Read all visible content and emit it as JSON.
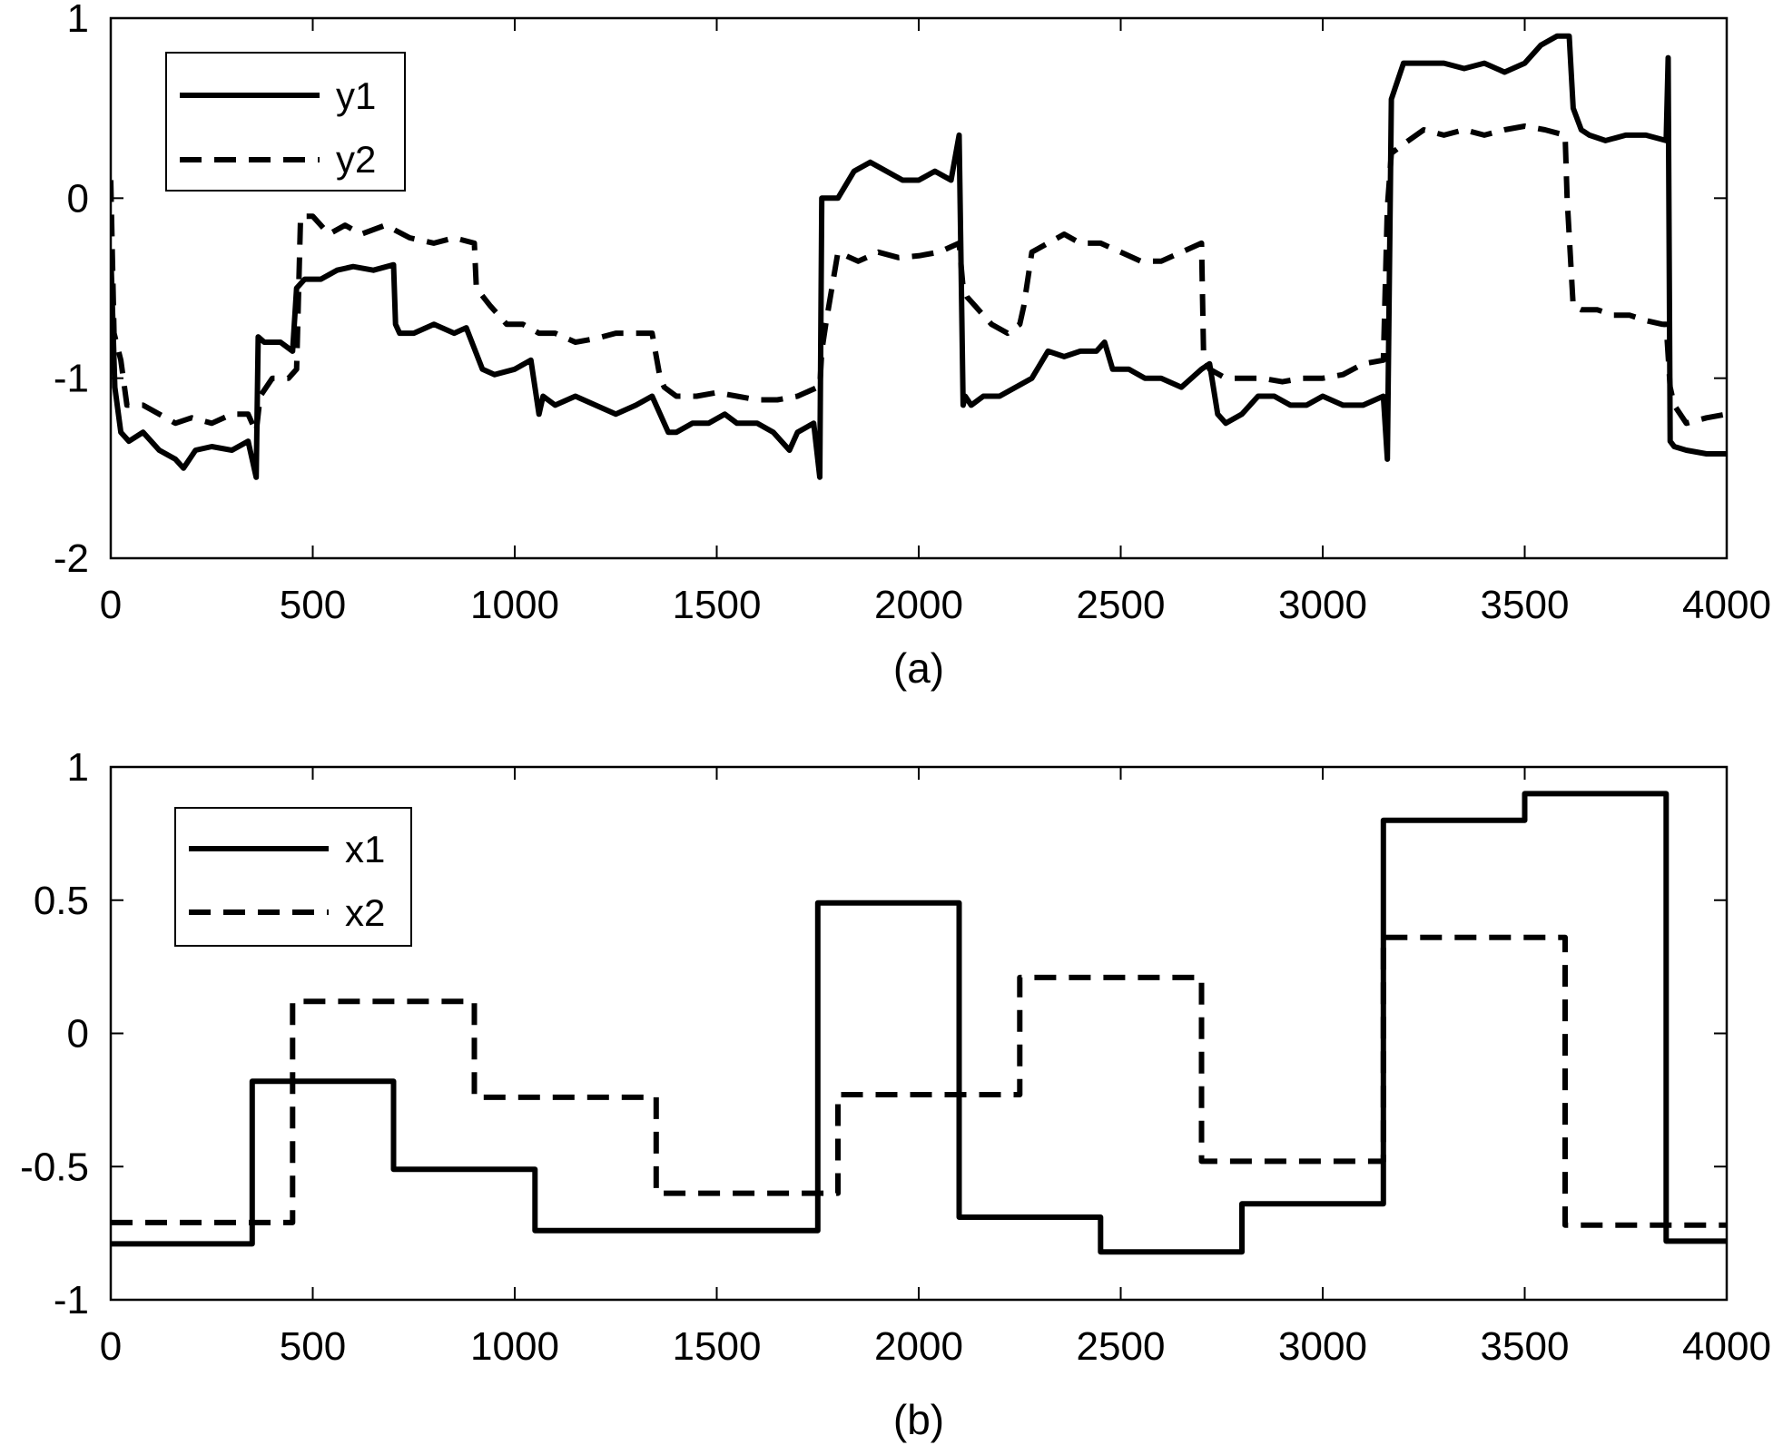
{
  "figure": {
    "background": "#ffffff",
    "line_color": "#000000"
  },
  "chart_data": [
    {
      "type": "line",
      "caption": "(a)",
      "xlim": [
        0,
        4000
      ],
      "ylim": [
        -2,
        1
      ],
      "x_ticks": [
        0,
        500,
        1000,
        1500,
        2000,
        2500,
        3000,
        3500,
        4000
      ],
      "y_ticks": [
        -2,
        -1,
        0,
        1
      ],
      "x_tick_labels": [
        "0",
        "500",
        "1000",
        "1500",
        "2000",
        "2500",
        "3000",
        "3500",
        "4000"
      ],
      "y_tick_labels": [
        "-2",
        "-1",
        "0",
        "1"
      ],
      "grid": false,
      "legend": {
        "position": "top-left",
        "entries": [
          "y1",
          "y2"
        ]
      },
      "series": [
        {
          "name": "y1",
          "style": "solid",
          "x": [
            0,
            10,
            25,
            45,
            80,
            120,
            160,
            180,
            210,
            250,
            300,
            340,
            360,
            365,
            380,
            420,
            450,
            460,
            480,
            520,
            560,
            600,
            650,
            700,
            705,
            715,
            750,
            800,
            850,
            880,
            920,
            950,
            1000,
            1040,
            1060,
            1070,
            1100,
            1150,
            1200,
            1250,
            1300,
            1340,
            1380,
            1400,
            1440,
            1480,
            1520,
            1550,
            1600,
            1640,
            1680,
            1700,
            1740,
            1755,
            1760,
            1770,
            1800,
            1840,
            1880,
            1920,
            1960,
            2000,
            2040,
            2080,
            2100,
            2110,
            2115,
            2130,
            2160,
            2200,
            2240,
            2280,
            2320,
            2360,
            2400,
            2440,
            2460,
            2480,
            2520,
            2560,
            2600,
            2650,
            2700,
            2720,
            2740,
            2760,
            2800,
            2840,
            2880,
            2920,
            2960,
            3000,
            3050,
            3100,
            3150,
            3160,
            3170,
            3200,
            3250,
            3300,
            3350,
            3400,
            3450,
            3500,
            3540,
            3580,
            3610,
            3620,
            3640,
            3660,
            3700,
            3750,
            3800,
            3850,
            3855,
            3860,
            3870,
            3900,
            3950,
            4000
          ],
          "y": [
            -0.3,
            -1.05,
            -1.3,
            -1.35,
            -1.3,
            -1.4,
            -1.45,
            -1.5,
            -1.4,
            -1.38,
            -1.4,
            -1.35,
            -1.55,
            -0.77,
            -0.8,
            -0.8,
            -0.85,
            -0.5,
            -0.45,
            -0.45,
            -0.4,
            -0.38,
            -0.4,
            -0.37,
            -0.7,
            -0.75,
            -0.75,
            -0.7,
            -0.75,
            -0.72,
            -0.95,
            -0.98,
            -0.95,
            -0.9,
            -1.2,
            -1.1,
            -1.15,
            -1.1,
            -1.15,
            -1.2,
            -1.15,
            -1.1,
            -1.3,
            -1.3,
            -1.25,
            -1.25,
            -1.2,
            -1.25,
            -1.25,
            -1.3,
            -1.4,
            -1.3,
            -1.25,
            -1.55,
            0.0,
            0.0,
            0.0,
            0.15,
            0.2,
            0.15,
            0.1,
            0.1,
            0.15,
            0.1,
            0.35,
            -1.15,
            -1.1,
            -1.15,
            -1.1,
            -1.1,
            -1.05,
            -1.0,
            -0.85,
            -0.88,
            -0.85,
            -0.85,
            -0.8,
            -0.95,
            -0.95,
            -1.0,
            -1.0,
            -1.05,
            -0.95,
            -0.92,
            -1.2,
            -1.25,
            -1.2,
            -1.1,
            -1.1,
            -1.15,
            -1.15,
            -1.1,
            -1.15,
            -1.15,
            -1.1,
            -1.45,
            0.55,
            0.75,
            0.75,
            0.75,
            0.72,
            0.75,
            0.7,
            0.75,
            0.85,
            0.9,
            0.9,
            0.5,
            0.38,
            0.35,
            0.32,
            0.35,
            0.35,
            0.32,
            0.78,
            -1.35,
            -1.38,
            -1.4,
            -1.42,
            -1.42
          ]
        },
        {
          "name": "y2",
          "style": "dashed",
          "x": [
            0,
            8,
            25,
            40,
            80,
            120,
            160,
            200,
            250,
            300,
            340,
            360,
            370,
            400,
            440,
            460,
            470,
            500,
            540,
            580,
            620,
            680,
            740,
            800,
            850,
            900,
            905,
            940,
            980,
            1020,
            1060,
            1100,
            1150,
            1200,
            1250,
            1300,
            1340,
            1360,
            1370,
            1400,
            1450,
            1500,
            1550,
            1600,
            1650,
            1700,
            1750,
            1755,
            1760,
            1770,
            1800,
            1850,
            1900,
            1950,
            2000,
            2050,
            2100,
            2110,
            2120,
            2140,
            2180,
            2220,
            2250,
            2260,
            2280,
            2320,
            2360,
            2400,
            2450,
            2500,
            2550,
            2600,
            2650,
            2700,
            2705,
            2720,
            2760,
            2800,
            2850,
            2900,
            2950,
            3000,
            3050,
            3100,
            3150,
            3160,
            3170,
            3200,
            3250,
            3300,
            3350,
            3400,
            3450,
            3500,
            3550,
            3600,
            3605,
            3620,
            3640,
            3680,
            3720,
            3760,
            3800,
            3840,
            3850,
            3860,
            3870,
            3900,
            3950,
            4000
          ],
          "y": [
            0.1,
            -0.75,
            -0.9,
            -1.15,
            -1.15,
            -1.2,
            -1.25,
            -1.22,
            -1.25,
            -1.2,
            -1.2,
            -1.3,
            -1.1,
            -1.0,
            -1.0,
            -0.95,
            -0.1,
            -0.1,
            -0.2,
            -0.15,
            -0.2,
            -0.15,
            -0.22,
            -0.25,
            -0.22,
            -0.25,
            -0.5,
            -0.6,
            -0.7,
            -0.7,
            -0.75,
            -0.75,
            -0.8,
            -0.78,
            -0.75,
            -0.75,
            -0.75,
            -1.0,
            -1.05,
            -1.1,
            -1.1,
            -1.08,
            -1.1,
            -1.12,
            -1.12,
            -1.1,
            -1.05,
            -1.05,
            -0.85,
            -0.7,
            -0.3,
            -0.35,
            -0.3,
            -0.33,
            -0.32,
            -0.3,
            -0.25,
            -0.5,
            -0.55,
            -0.6,
            -0.7,
            -0.75,
            -0.7,
            -0.6,
            -0.3,
            -0.25,
            -0.2,
            -0.25,
            -0.25,
            -0.3,
            -0.35,
            -0.35,
            -0.3,
            -0.25,
            -0.85,
            -0.95,
            -1.0,
            -1.0,
            -1.0,
            -1.02,
            -1.0,
            -1.0,
            -0.98,
            -0.92,
            -0.9,
            -0.05,
            0.25,
            0.3,
            0.38,
            0.35,
            0.38,
            0.35,
            0.38,
            0.4,
            0.38,
            0.35,
            0.0,
            -0.6,
            -0.62,
            -0.62,
            -0.65,
            -0.65,
            -0.68,
            -0.7,
            -0.7,
            -1.05,
            -1.15,
            -1.25,
            -1.22,
            -1.2
          ]
        }
      ]
    },
    {
      "type": "line",
      "caption": "(b)",
      "xlim": [
        0,
        4000
      ],
      "ylim": [
        -1,
        1
      ],
      "x_ticks": [
        0,
        500,
        1000,
        1500,
        2000,
        2500,
        3000,
        3500,
        4000
      ],
      "y_ticks": [
        -1,
        -0.5,
        0,
        0.5,
        1
      ],
      "x_tick_labels": [
        "0",
        "500",
        "1000",
        "1500",
        "2000",
        "2500",
        "3000",
        "3500",
        "4000"
      ],
      "y_tick_labels": [
        "-1",
        "-0.5",
        "0",
        "0.5",
        "1"
      ],
      "grid": false,
      "legend": {
        "position": "top-left",
        "entries": [
          "x1",
          "x2"
        ]
      },
      "series": [
        {
          "name": "x1",
          "style": "solid",
          "step": true,
          "x": [
            0,
            350,
            700,
            1050,
            1750,
            2100,
            2450,
            2800,
            3150,
            3500,
            3850,
            4000
          ],
          "y": [
            -0.79,
            -0.18,
            -0.51,
            -0.74,
            0.49,
            -0.69,
            -0.82,
            -0.64,
            0.8,
            0.9,
            -0.78,
            -0.78
          ]
        },
        {
          "name": "x2",
          "style": "dashed",
          "step": true,
          "x": [
            0,
            450,
            900,
            1350,
            1800,
            2250,
            2700,
            3150,
            3600,
            4000
          ],
          "y": [
            -0.71,
            0.12,
            -0.24,
            -0.6,
            -0.23,
            0.21,
            -0.48,
            0.36,
            -0.72,
            -0.72
          ]
        }
      ]
    }
  ]
}
